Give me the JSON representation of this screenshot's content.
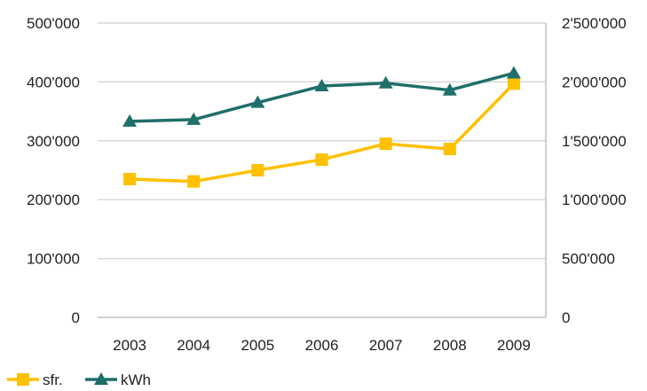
{
  "chart_data": {
    "type": "line",
    "title": "",
    "xlabel": "",
    "ylabel": "",
    "categories": [
      "2003",
      "2004",
      "2005",
      "2006",
      "2007",
      "2008",
      "2009"
    ],
    "y_left": {
      "range": [
        0,
        500000
      ],
      "ticks": [
        0,
        100000,
        200000,
        300000,
        400000,
        500000
      ],
      "tick_labels": [
        "0",
        "100'000",
        "200'000",
        "300'000",
        "400'000",
        "500'000"
      ]
    },
    "y_right": {
      "range": [
        0,
        2500000
      ],
      "ticks": [
        0,
        500000,
        1000000,
        1500000,
        2000000,
        2500000
      ],
      "tick_labels": [
        "0",
        "500'000",
        "1'000'000",
        "1'500'000",
        "2'000'000",
        "2'500'000"
      ]
    },
    "grid": true,
    "legend_position": "bottom-left",
    "series": [
      {
        "name": "sfr.",
        "axis": "left",
        "marker": "square",
        "color": "#FFC000",
        "values": [
          235000,
          231000,
          250000,
          268000,
          295000,
          286000,
          397000
        ]
      },
      {
        "name": "kWh",
        "axis": "right",
        "marker": "triangle",
        "color": "#1F6F6A",
        "values": [
          1665000,
          1680000,
          1825000,
          1965000,
          1990000,
          1930000,
          2075000
        ]
      }
    ]
  }
}
